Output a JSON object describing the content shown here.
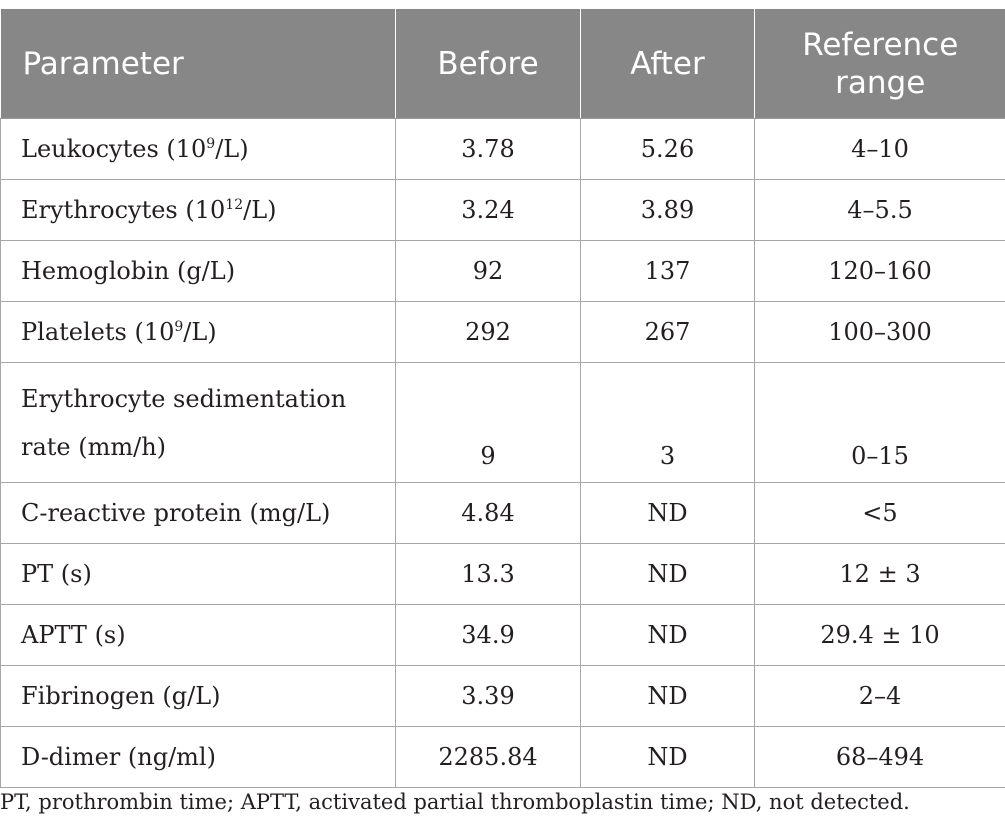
{
  "table": {
    "headers": [
      "Parameter",
      "Before",
      "After",
      "Reference range"
    ],
    "rows": [
      {
        "name": "Leukocytes (10",
        "sup": "9",
        "unit": "/L)",
        "before": "3.78",
        "after": "5.26",
        "ref": "4–10"
      },
      {
        "name": "Erythrocytes (10",
        "sup": "12",
        "unit": "/L)",
        "before": "3.24",
        "after": "3.89",
        "ref": "4–5.5"
      },
      {
        "name": "Hemoglobin (g/L)",
        "before": "92",
        "after": "137",
        "ref": "120–160"
      },
      {
        "name": "Platelets (10",
        "sup": "9",
        "unit": "/L)",
        "before": "292",
        "after": "267",
        "ref": "100–300"
      },
      {
        "name": "Erythrocyte sedimentation rate (mm/h)",
        "before": "9",
        "after": "3",
        "ref": "0–15"
      },
      {
        "name": "C-reactive protein (mg/L)",
        "before": "4.84",
        "after": "ND",
        "ref": "<5"
      },
      {
        "name": "PT (s)",
        "before": "13.3",
        "after": "ND",
        "ref": "12 ± 3"
      },
      {
        "name": "APTT (s)",
        "before": "34.9",
        "after": "ND",
        "ref": "29.4 ± 10"
      },
      {
        "name": "Fibrinogen (g/L)",
        "before": "3.39",
        "after": "ND",
        "ref": "2–4"
      },
      {
        "name": "D-dimer (ng/ml)",
        "before": "2285.84",
        "after": "ND",
        "ref": "68–494"
      }
    ]
  },
  "footnote": "PT, prothrombin time; APTT, activated partial thromboplastin time; ND, not detected."
}
